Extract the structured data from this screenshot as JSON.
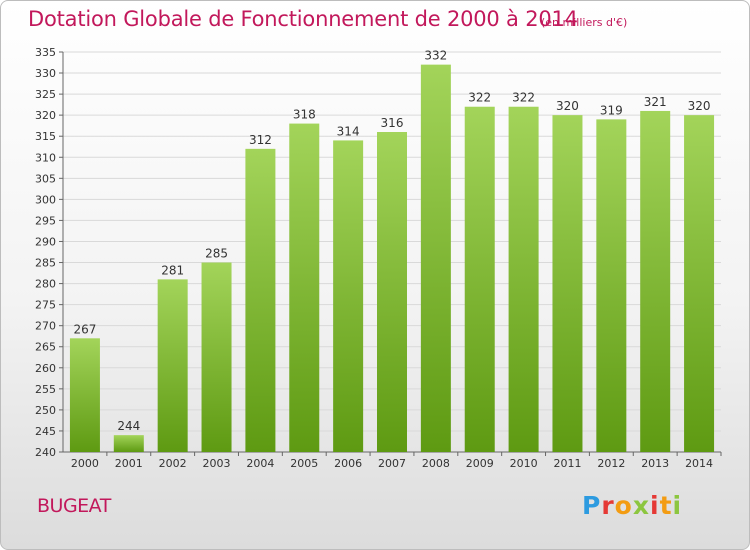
{
  "title": "Dotation Globale de Fonctionnement de 2000 à 2014",
  "unit_note": "(en milliers d'€)",
  "commune": "BUGEAT",
  "logo": {
    "text": "Proxiti",
    "colors": [
      "#2d9be0",
      "#8cc63f",
      "#f39c12",
      "#e53935"
    ]
  },
  "colors": {
    "title": "#c2185b",
    "bar_top": "#a3d45a",
    "bar_bottom": "#5e9a12",
    "grid": "#d9d9d9"
  },
  "chart_data": {
    "type": "bar",
    "title": "Dotation Globale de Fonctionnement de 2000 à 2014",
    "xlabel": "",
    "ylabel": "",
    "categories": [
      "2000",
      "2001",
      "2002",
      "2003",
      "2004",
      "2005",
      "2006",
      "2007",
      "2008",
      "2009",
      "2010",
      "2011",
      "2012",
      "2013",
      "2014"
    ],
    "values": [
      267,
      244,
      281,
      285,
      312,
      318,
      314,
      316,
      332,
      322,
      322,
      320,
      319,
      321,
      320
    ],
    "ylim": [
      240,
      335
    ],
    "yticks": [
      240,
      245,
      250,
      255,
      260,
      265,
      270,
      275,
      280,
      285,
      290,
      295,
      300,
      305,
      310,
      315,
      320,
      325,
      330,
      335
    ],
    "grid": true,
    "data_labels": true
  }
}
